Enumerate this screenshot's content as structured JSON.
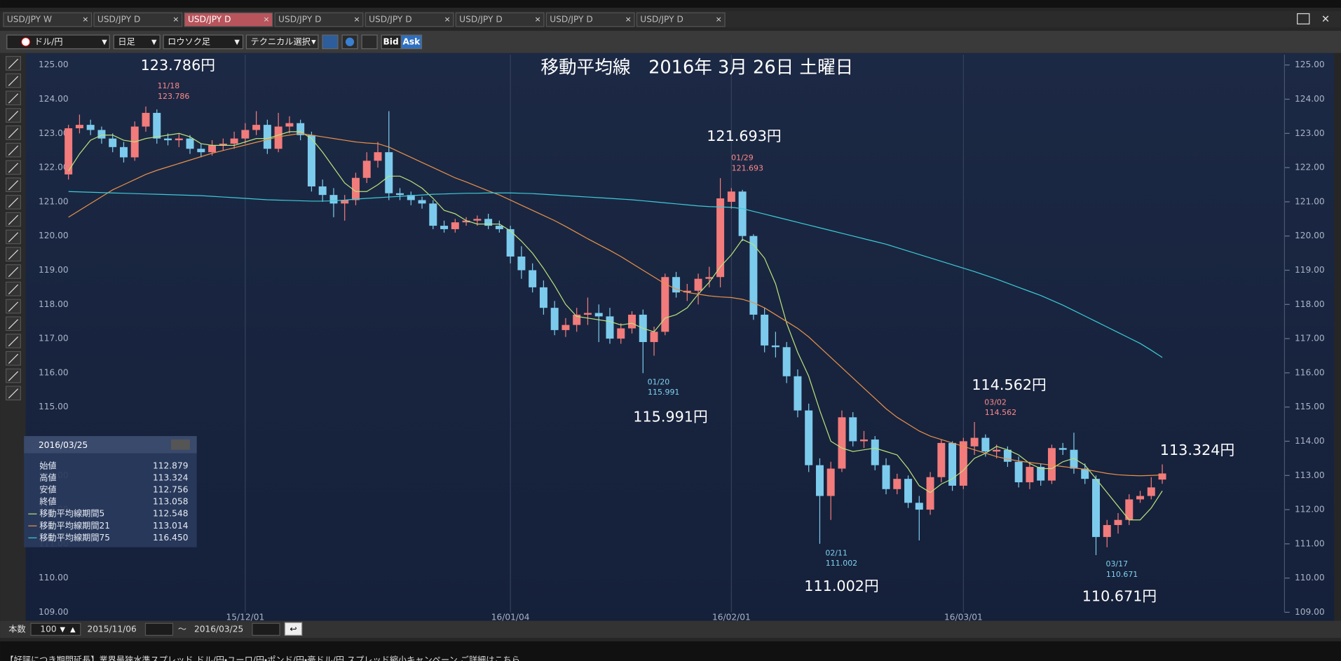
{
  "tabs": [
    "USD/JPY W",
    "USD/JPY D",
    "USD/JPY D",
    "USD/JPY D",
    "USD/JPY D",
    "USD/JPY D",
    "USD/JPY D",
    "USD/JPY D"
  ],
  "toolbar": {
    "pair": "ドル/円",
    "period": "日足",
    "style": "ロウソク足",
    "technical": "テクニカル選択",
    "bid": "Bid",
    "ask": "Ask"
  },
  "chart_data": {
    "type": "candlestick",
    "title": "移動平均線　2016年 3月 26日 土曜日",
    "categories": [
      null,
      null,
      null,
      null,
      null,
      null,
      null,
      null,
      null,
      null,
      null,
      null,
      null,
      null,
      null,
      null,
      "15/12/01",
      null,
      null,
      null,
      null,
      null,
      null,
      null,
      null,
      null,
      null,
      null,
      null,
      null,
      null,
      null,
      null,
      null,
      null,
      null,
      null,
      null,
      null,
      null,
      "16/01/04",
      null,
      null,
      null,
      null,
      null,
      null,
      null,
      null,
      null,
      null,
      null,
      null,
      null,
      null,
      null,
      null,
      null,
      null,
      null,
      "16/02/01",
      null,
      null,
      null,
      null,
      null,
      null,
      null,
      null,
      null,
      null,
      null,
      null,
      null,
      null,
      null,
      null,
      null,
      null,
      null,
      null,
      "16/03/01",
      null,
      null,
      null,
      null,
      null,
      null,
      null,
      null,
      null,
      null,
      null,
      null,
      null,
      null,
      null,
      null,
      null,
      null
    ],
    "ohlc": [
      [
        121.8,
        123.25,
        121.65,
        123.15
      ],
      [
        123.15,
        123.55,
        123.0,
        123.25
      ],
      [
        123.25,
        123.4,
        122.95,
        123.1
      ],
      [
        123.1,
        123.2,
        122.7,
        122.85
      ],
      [
        122.85,
        123.0,
        122.45,
        122.6
      ],
      [
        122.6,
        122.75,
        122.15,
        122.3
      ],
      [
        122.3,
        123.35,
        122.2,
        123.2
      ],
      [
        123.2,
        123.786,
        123.05,
        123.6
      ],
      [
        123.6,
        123.7,
        122.7,
        122.85
      ],
      [
        122.85,
        123.0,
        122.65,
        122.8
      ],
      [
        122.8,
        123.0,
        122.6,
        122.85
      ],
      [
        122.85,
        122.95,
        122.4,
        122.55
      ],
      [
        122.55,
        122.7,
        122.3,
        122.45
      ],
      [
        122.45,
        122.8,
        122.35,
        122.65
      ],
      [
        122.65,
        122.85,
        122.5,
        122.7
      ],
      [
        122.7,
        123.05,
        122.55,
        122.85
      ],
      [
        122.85,
        123.3,
        122.7,
        123.1
      ],
      [
        123.1,
        123.65,
        122.95,
        123.25
      ],
      [
        123.25,
        123.4,
        122.4,
        122.55
      ],
      [
        122.55,
        123.6,
        122.45,
        123.2
      ],
      [
        123.2,
        123.5,
        123.0,
        123.3
      ],
      [
        123.3,
        123.4,
        122.8,
        122.95
      ],
      [
        122.95,
        123.05,
        121.3,
        121.45
      ],
      [
        121.45,
        121.65,
        121.0,
        121.2
      ],
      [
        121.2,
        121.4,
        120.55,
        120.95
      ],
      [
        120.95,
        121.2,
        120.45,
        121.05
      ],
      [
        121.05,
        121.85,
        120.9,
        121.7
      ],
      [
        121.7,
        122.45,
        121.55,
        122.2
      ],
      [
        122.2,
        122.75,
        122.0,
        122.45
      ],
      [
        122.45,
        123.65,
        121.05,
        121.25
      ],
      [
        121.25,
        121.4,
        121.05,
        121.2
      ],
      [
        121.2,
        121.3,
        120.9,
        121.05
      ],
      [
        121.05,
        121.15,
        120.8,
        120.95
      ],
      [
        120.95,
        121.05,
        120.2,
        120.3
      ],
      [
        120.3,
        120.45,
        120.1,
        120.2
      ],
      [
        120.2,
        120.5,
        120.1,
        120.4
      ],
      [
        120.4,
        120.55,
        120.3,
        120.45
      ],
      [
        120.45,
        120.6,
        120.3,
        120.5
      ],
      [
        120.5,
        120.65,
        120.2,
        120.3
      ],
      [
        120.3,
        120.45,
        120.1,
        120.2
      ],
      [
        120.2,
        120.3,
        119.2,
        119.4
      ],
      [
        119.4,
        119.7,
        118.75,
        119.0
      ],
      [
        119.0,
        119.2,
        118.35,
        118.5
      ],
      [
        118.5,
        118.7,
        117.7,
        117.9
      ],
      [
        117.9,
        118.1,
        117.1,
        117.25
      ],
      [
        117.25,
        117.6,
        117.05,
        117.4
      ],
      [
        117.4,
        117.9,
        117.2,
        117.7
      ],
      [
        117.7,
        118.2,
        117.4,
        117.75
      ],
      [
        117.75,
        118.0,
        116.9,
        117.65
      ],
      [
        117.65,
        117.9,
        116.85,
        117.0
      ],
      [
        117.0,
        117.45,
        116.85,
        117.3
      ],
      [
        117.3,
        117.8,
        117.15,
        117.7
      ],
      [
        117.7,
        117.85,
        115.991,
        116.9
      ],
      [
        116.9,
        117.35,
        116.5,
        117.2
      ],
      [
        117.2,
        118.9,
        117.1,
        118.8
      ],
      [
        118.8,
        118.95,
        118.2,
        118.35
      ],
      [
        118.35,
        118.6,
        118.1,
        118.4
      ],
      [
        118.4,
        118.9,
        118.0,
        118.75
      ],
      [
        118.75,
        119.1,
        118.5,
        118.8
      ],
      [
        118.8,
        121.693,
        118.5,
        121.1
      ],
      [
        121.0,
        121.4,
        120.8,
        121.3
      ],
      [
        121.3,
        121.35,
        119.85,
        120.0
      ],
      [
        120.0,
        120.05,
        117.55,
        117.7
      ],
      [
        117.7,
        117.9,
        116.6,
        116.8
      ],
      [
        116.8,
        117.2,
        116.45,
        116.75
      ],
      [
        116.75,
        116.9,
        115.7,
        115.9
      ],
      [
        115.9,
        116.1,
        114.7,
        114.9
      ],
      [
        114.9,
        115.1,
        113.1,
        113.3
      ],
      [
        113.3,
        113.5,
        111.002,
        112.4
      ],
      [
        112.4,
        113.4,
        111.7,
        113.2
      ],
      [
        113.2,
        114.9,
        113.1,
        114.7
      ],
      [
        114.7,
        114.85,
        113.85,
        114.0
      ],
      [
        114.0,
        114.3,
        113.8,
        114.05
      ],
      [
        114.05,
        114.15,
        113.15,
        113.3
      ],
      [
        113.3,
        113.5,
        112.45,
        112.6
      ],
      [
        112.6,
        113.05,
        112.45,
        112.9
      ],
      [
        112.9,
        113.0,
        112.05,
        112.2
      ],
      [
        112.2,
        112.4,
        111.1,
        112.0
      ],
      [
        112.0,
        113.1,
        111.85,
        112.95
      ],
      [
        112.95,
        114.05,
        112.8,
        113.95
      ],
      [
        113.95,
        114.0,
        112.55,
        112.7
      ],
      [
        112.7,
        114.1,
        112.6,
        114.0
      ],
      [
        113.85,
        114.562,
        113.6,
        114.1
      ],
      [
        114.1,
        114.2,
        113.55,
        113.7
      ],
      [
        113.7,
        113.9,
        113.5,
        113.75
      ],
      [
        113.75,
        113.85,
        113.25,
        113.4
      ],
      [
        113.4,
        113.55,
        112.65,
        112.8
      ],
      [
        112.8,
        113.4,
        112.6,
        113.25
      ],
      [
        113.25,
        113.35,
        112.7,
        112.85
      ],
      [
        112.85,
        113.9,
        112.75,
        113.8
      ],
      [
        113.8,
        113.95,
        113.6,
        113.75
      ],
      [
        113.75,
        114.25,
        113.05,
        113.2
      ],
      [
        113.2,
        113.35,
        112.75,
        112.9
      ],
      [
        112.9,
        113.0,
        110.671,
        111.2
      ],
      [
        111.2,
        111.7,
        110.9,
        111.55
      ],
      [
        111.55,
        111.9,
        111.3,
        111.7
      ],
      [
        111.7,
        112.45,
        111.55,
        112.3
      ],
      [
        112.3,
        112.55,
        112.2,
        112.4
      ],
      [
        112.4,
        112.95,
        112.3,
        112.65
      ],
      [
        112.879,
        113.324,
        112.756,
        113.058
      ]
    ],
    "up_color": "#f27b7b",
    "down_color": "#7ccbed",
    "lines": [
      {
        "name": "移動平均線期間5",
        "color": "#b9e27a",
        "values": [
          121.9,
          122.4,
          122.8,
          122.95,
          122.95,
          122.8,
          122.75,
          122.85,
          122.9,
          122.95,
          123.0,
          122.9,
          122.7,
          122.65,
          122.65,
          122.65,
          122.75,
          122.85,
          122.85,
          122.95,
          123.05,
          123.05,
          122.85,
          122.45,
          122.0,
          121.55,
          121.3,
          121.3,
          121.5,
          121.75,
          121.75,
          121.6,
          121.4,
          121.1,
          120.75,
          120.65,
          120.45,
          120.35,
          120.35,
          120.35,
          120.15,
          119.85,
          119.5,
          119.05,
          118.55,
          118.0,
          117.65,
          117.6,
          117.55,
          117.5,
          117.4,
          117.45,
          117.3,
          117.2,
          117.6,
          117.7,
          117.9,
          118.3,
          118.65,
          119.1,
          119.45,
          119.9,
          119.75,
          119.35,
          118.6,
          117.45,
          116.6,
          115.9,
          114.9,
          114.0,
          113.8,
          113.7,
          113.75,
          113.8,
          113.7,
          113.6,
          113.2,
          112.7,
          112.5,
          112.75,
          112.9,
          113.15,
          113.5,
          113.65,
          113.85,
          113.75,
          113.6,
          113.35,
          113.2,
          113.2,
          113.4,
          113.5,
          113.3,
          112.9,
          112.5,
          112.1,
          111.7,
          111.7,
          112.05,
          112.548
        ]
      },
      {
        "name": "移動平均線期間21",
        "color": "#e8914a",
        "values": [
          120.55,
          120.75,
          120.95,
          121.15,
          121.35,
          121.5,
          121.65,
          121.8,
          121.92,
          122.02,
          122.12,
          122.22,
          122.32,
          122.42,
          122.5,
          122.58,
          122.66,
          122.74,
          122.82,
          122.9,
          122.95,
          123.0,
          122.95,
          122.9,
          122.85,
          122.8,
          122.75,
          122.72,
          122.7,
          122.6,
          122.45,
          122.3,
          122.15,
          122.0,
          121.85,
          121.7,
          121.58,
          121.45,
          121.32,
          121.2,
          121.05,
          120.9,
          120.75,
          120.6,
          120.45,
          120.28,
          120.1,
          119.92,
          119.75,
          119.58,
          119.4,
          119.2,
          119.0,
          118.8,
          118.6,
          118.45,
          118.35,
          118.3,
          118.25,
          118.22,
          118.2,
          118.15,
          118.05,
          117.9,
          117.7,
          117.5,
          117.3,
          117.05,
          116.75,
          116.45,
          116.15,
          115.85,
          115.55,
          115.25,
          114.95,
          114.7,
          114.5,
          114.3,
          114.15,
          114.05,
          113.95,
          113.85,
          113.75,
          113.65,
          113.55,
          113.48,
          113.42,
          113.38,
          113.34,
          113.3,
          113.26,
          113.22,
          113.18,
          113.12,
          113.06,
          113.02,
          113.0,
          112.99,
          113.0,
          113.014
        ]
      },
      {
        "name": "移動平均線期間75",
        "color": "#3ccbd8",
        "values": [
          121.3,
          121.29,
          121.28,
          121.27,
          121.26,
          121.25,
          121.24,
          121.23,
          121.22,
          121.21,
          121.2,
          121.19,
          121.18,
          121.16,
          121.14,
          121.12,
          121.1,
          121.08,
          121.06,
          121.05,
          121.04,
          121.03,
          121.02,
          121.02,
          121.03,
          121.05,
          121.08,
          121.1,
          121.12,
          121.14,
          121.16,
          121.18,
          121.2,
          121.22,
          121.23,
          121.24,
          121.25,
          121.25,
          121.26,
          121.26,
          121.26,
          121.25,
          121.24,
          121.22,
          121.2,
          121.18,
          121.16,
          121.14,
          121.12,
          121.1,
          121.08,
          121.06,
          121.03,
          121.0,
          120.97,
          120.94,
          120.91,
          120.88,
          120.86,
          120.85,
          120.84,
          120.8,
          120.72,
          120.64,
          120.56,
          120.48,
          120.4,
          120.32,
          120.24,
          120.16,
          120.08,
          120.0,
          119.92,
          119.84,
          119.76,
          119.66,
          119.56,
          119.46,
          119.36,
          119.26,
          119.16,
          119.06,
          118.96,
          118.85,
          118.74,
          118.62,
          118.5,
          118.38,
          118.26,
          118.12,
          117.98,
          117.82,
          117.66,
          117.5,
          117.34,
          117.18,
          117.02,
          116.86,
          116.66,
          116.45
        ]
      }
    ],
    "ylim": [
      109,
      125
    ],
    "yticks": [
      {
        "value": 109,
        "label": "109.00"
      },
      {
        "value": 110,
        "label": "110.00"
      },
      {
        "value": 111,
        "label": "111.00"
      },
      {
        "value": 112,
        "label": "112.00"
      },
      {
        "value": 113,
        "label": "113.00"
      },
      {
        "value": 114,
        "label": "114.00"
      },
      {
        "value": 115,
        "label": "115.00"
      },
      {
        "value": 116,
        "label": "116.00"
      },
      {
        "value": 117,
        "label": "117.00"
      },
      {
        "value": 118,
        "label": "118.00"
      },
      {
        "value": 119,
        "label": "119.00"
      },
      {
        "value": 120,
        "label": "120.00"
      },
      {
        "value": 121,
        "label": "121.00"
      },
      {
        "value": 122,
        "label": "122.00"
      },
      {
        "value": 123,
        "label": "123.00"
      },
      {
        "value": 124,
        "label": "124.00"
      },
      {
        "value": 125,
        "label": "125.00"
      }
    ],
    "annotations": [
      {
        "text": "123.786円",
        "date": "11/18",
        "price": "123.786",
        "color": "#ff8a8a"
      },
      {
        "text": "115.991円",
        "date": "01/20",
        "price": "115.991",
        "color": "#7fd3f2"
      },
      {
        "text": "121.693円",
        "date": "01/29",
        "price": "121.693",
        "color": "#ff8a8a"
      },
      {
        "text": "111.002円",
        "date": "02/11",
        "price": "111.002",
        "color": "#7fd3f2"
      },
      {
        "text": "114.562円",
        "date": "03/02",
        "price": "114.562",
        "color": "#ff8a8a"
      },
      {
        "text": "110.671円",
        "date": "03/17",
        "price": "110.671",
        "color": "#7fd3f2"
      }
    ],
    "last_label": "113.324円"
  },
  "info_panel": {
    "date": "2016/03/25",
    "rows": [
      {
        "label": "始値",
        "value": "112.879"
      },
      {
        "label": "高値",
        "value": "113.324"
      },
      {
        "label": "安値",
        "value": "112.756"
      },
      {
        "label": "終値",
        "value": "113.058"
      }
    ],
    "ma_values": [
      "112.548",
      "113.014",
      "116.450"
    ]
  },
  "footer": {
    "count_label": "本数",
    "count": "100",
    "from": "2015/11/06",
    "tilde": "～",
    "to": "2016/03/25"
  },
  "ticker": "【好評につき期間延長】業界最狭水準スプレッド ドル/円・ユーロ/円・ポンド/円・豪ドル/円 スプレッド縮小キャンペーン ご詳細はこちら"
}
